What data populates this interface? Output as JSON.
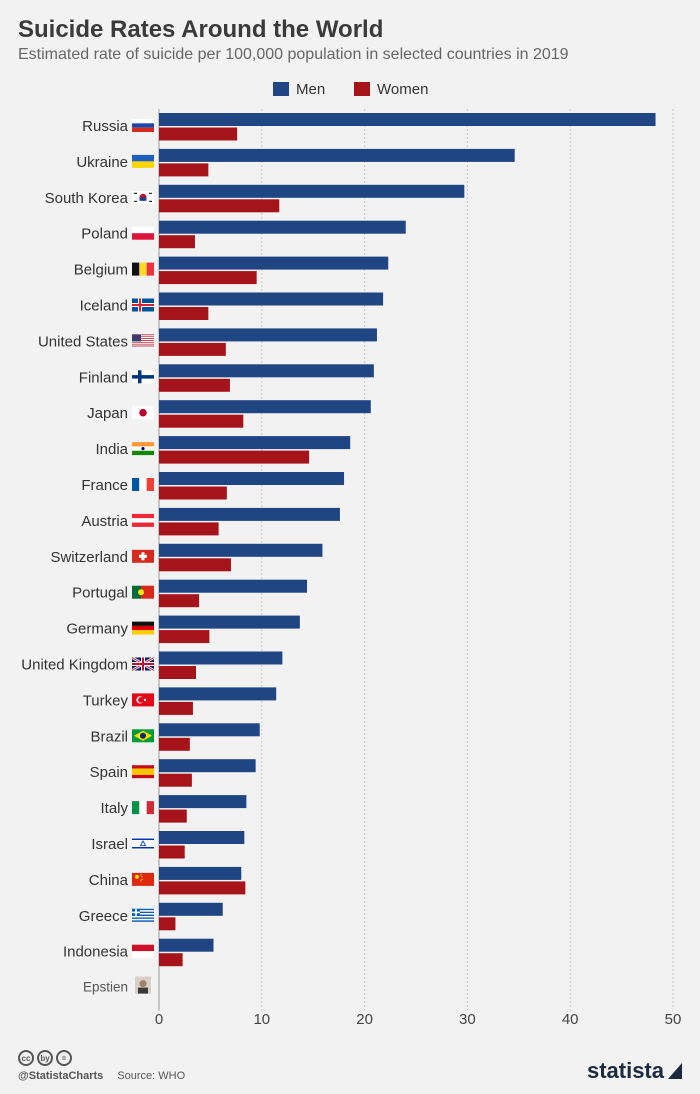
{
  "header": {
    "title": "Suicide Rates Around the World",
    "subtitle": "Estimated rate of suicide per 100,000 population in selected countries in 2019"
  },
  "colors": {
    "men": "#1f4583",
    "women": "#a6141b",
    "grid": "#c9c9c9"
  },
  "chart_data": {
    "type": "bar",
    "orientation": "horizontal",
    "categories": [
      "Russia",
      "Ukraine",
      "South Korea",
      "Poland",
      "Belgium",
      "Iceland",
      "United States",
      "Finland",
      "Japan",
      "India",
      "France",
      "Austria",
      "Switzerland",
      "Portugal",
      "Germany",
      "United Kingdom",
      "Turkey",
      "Brazil",
      "Spain",
      "Italy",
      "Israel",
      "China",
      "Greece",
      "Indonesia",
      "Epstien"
    ],
    "series": [
      {
        "name": "Men",
        "values": [
          48.3,
          34.6,
          29.7,
          24.0,
          22.3,
          21.8,
          21.2,
          20.9,
          20.6,
          18.6,
          18.0,
          17.6,
          15.9,
          14.4,
          13.7,
          12.0,
          11.4,
          9.8,
          9.4,
          8.5,
          8.3,
          8.0,
          6.2,
          5.3,
          null
        ]
      },
      {
        "name": "Women",
        "values": [
          7.6,
          4.8,
          11.7,
          3.5,
          9.5,
          4.8,
          6.5,
          6.9,
          8.2,
          14.6,
          6.6,
          5.8,
          7.0,
          3.9,
          4.9,
          3.6,
          3.3,
          3.0,
          3.2,
          2.7,
          2.5,
          8.4,
          1.6,
          2.3,
          null
        ]
      }
    ],
    "xlim": [
      0,
      50
    ],
    "xticks": [
      "0",
      "10",
      "20",
      "30",
      "40",
      "50"
    ],
    "legend_position": "top-center",
    "grid": true,
    "flags": [
      "russia",
      "ukraine",
      "south-korea",
      "poland",
      "belgium",
      "iceland",
      "united-states",
      "finland",
      "japan",
      "india",
      "france",
      "austria",
      "switzerland",
      "portugal",
      "germany",
      "united-kingdom",
      "turkey",
      "brazil",
      "spain",
      "italy",
      "israel",
      "china",
      "greece",
      "indonesia",
      "portrait-photo"
    ]
  },
  "footer": {
    "cc_icons": [
      "cc",
      "by",
      "="
    ],
    "handle": "@StatistaCharts",
    "source": "Source: WHO",
    "brand": "statista"
  }
}
